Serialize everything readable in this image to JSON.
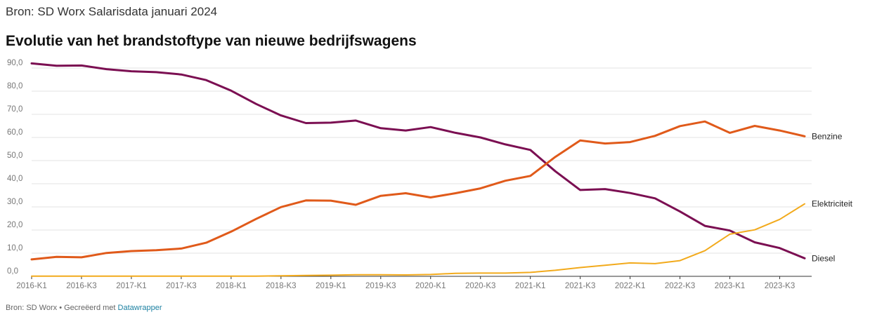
{
  "header": {
    "source_line": "Bron: SD Worx Salarisdata januari 2024"
  },
  "chart_data": {
    "type": "line",
    "title": "Evolutie van het brandstoftype van nieuwe bedrijfswagens",
    "xlabel": "",
    "ylabel": "",
    "ylim": [
      0,
      90
    ],
    "yticks": [
      "0,0",
      "10,0",
      "20,0",
      "30,0",
      "40,0",
      "50,0",
      "60,0",
      "70,0",
      "80,0",
      "90,0"
    ],
    "ytick_values": [
      0,
      10,
      20,
      30,
      40,
      50,
      60,
      70,
      80,
      90
    ],
    "grid": true,
    "legend": "direct labels at line ends (right)",
    "categories": [
      "2016-K1",
      "2016-K2",
      "2016-K3",
      "2016-K4",
      "2017-K1",
      "2017-K2",
      "2017-K3",
      "2017-K4",
      "2018-K1",
      "2018-K2",
      "2018-K3",
      "2018-K4",
      "2019-K1",
      "2019-K2",
      "2019-K3",
      "2019-K4",
      "2020-K1",
      "2020-K2",
      "2020-K3",
      "2020-K4",
      "2021-K1",
      "2021-K2",
      "2021-K3",
      "2021-K4",
      "2022-K1",
      "2022-K2",
      "2022-K3",
      "2022-K4",
      "2023-K1",
      "2023-K2",
      "2023-K3",
      "2023-K4"
    ],
    "xtick_labels": [
      "2016-K1",
      "2016-K3",
      "2017-K1",
      "2017-K3",
      "2018-K1",
      "2018-K3",
      "2019-K1",
      "2019-K3",
      "2020-K1",
      "2020-K3",
      "2021-K1",
      "2021-K3",
      "2022-K1",
      "2022-K3",
      "2023-K1",
      "2023-K3"
    ],
    "series": [
      {
        "name": "Diesel",
        "color": "#7b0f52",
        "values": [
          92.0,
          91.0,
          91.1,
          89.5,
          88.6,
          88.2,
          87.2,
          84.8,
          80.2,
          74.5,
          69.5,
          66.2,
          66.4,
          67.3,
          64.0,
          63.0,
          64.5,
          62.0,
          60.0,
          57.0,
          54.6,
          45.4,
          37.3,
          37.7,
          36.0,
          33.7,
          28.0,
          21.8,
          19.8,
          14.7,
          12.2,
          7.8
        ]
      },
      {
        "name": "Benzine",
        "color": "#e05a1a",
        "values": [
          7.3,
          8.4,
          8.2,
          10.1,
          10.9,
          11.3,
          12.0,
          14.5,
          19.3,
          24.8,
          29.9,
          32.8,
          32.7,
          30.9,
          34.8,
          35.9,
          34.1,
          35.9,
          38.0,
          41.3,
          43.4,
          51.6,
          58.7,
          57.4,
          58.0,
          60.7,
          64.9,
          66.9,
          62.0,
          65.0,
          63.0,
          60.5
        ]
      },
      {
        "name": "Elektriciteit",
        "color": "#f2aa1c",
        "values": [
          0.1,
          0.1,
          0.1,
          0.1,
          0.1,
          0.1,
          0.1,
          0.1,
          0.1,
          0.1,
          0.2,
          0.4,
          0.5,
          0.7,
          0.7,
          0.6,
          0.8,
          1.3,
          1.4,
          1.4,
          1.7,
          2.6,
          3.8,
          4.8,
          5.8,
          5.5,
          6.8,
          11.1,
          18.2,
          20.1,
          24.6,
          31.3
        ]
      }
    ]
  },
  "footer": {
    "credit": "Bron: SD Worx • Gecreëerd met",
    "tool_link": "Datawrapper"
  }
}
